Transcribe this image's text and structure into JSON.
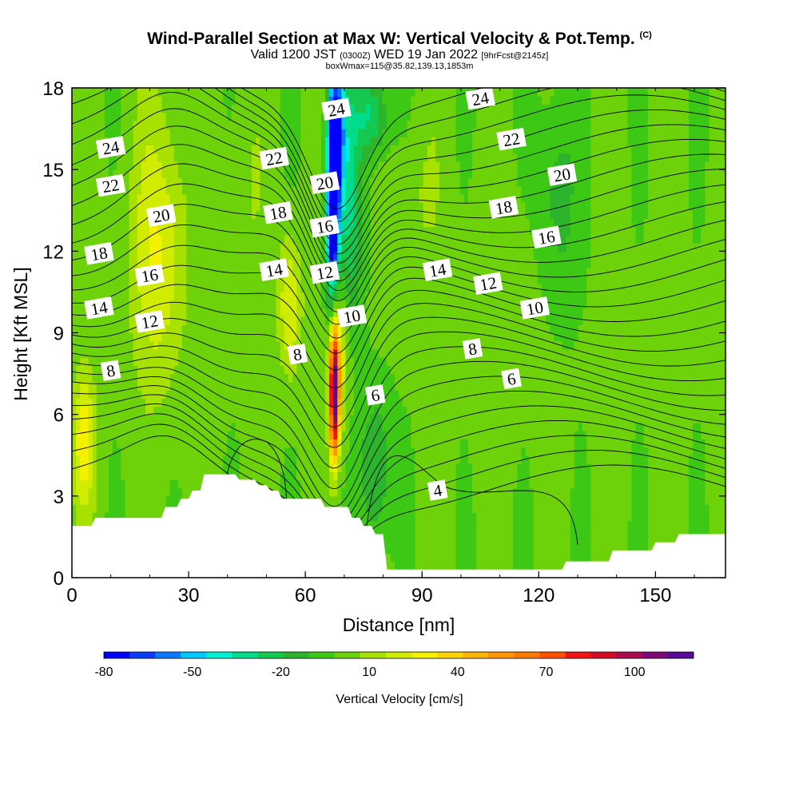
{
  "title": {
    "main": "Wind-Parallel Section at Max W: Vertical Velocity & Pot.Temp.",
    "copyright": "(C)",
    "sub_a": "Valid 1200 JST",
    "sub_b": "(0300Z)",
    "sub_c": "WED 19 Jan 2022",
    "sub_d": "[9hrFcst@2145z]",
    "sub2": "boxWmax=115@35.82,139.13,1853m"
  },
  "chart_data": {
    "type": "heatmap",
    "xlabel": "Distance [nm]",
    "ylabel": "Height [Kft MSL]",
    "xlim": [
      0,
      168
    ],
    "ylim": [
      0,
      18
    ],
    "x_ticks": [
      "0",
      "30",
      "60",
      "90",
      "120",
      "150"
    ],
    "x_tick_values": [
      0,
      30,
      60,
      90,
      120,
      150
    ],
    "y_ticks": [
      "0",
      "3",
      "6",
      "9",
      "12",
      "15",
      "18"
    ],
    "y_tick_values": [
      0,
      3,
      6,
      9,
      12,
      15,
      18
    ],
    "colorbar": {
      "label": "Vertical Velocity [cm/s]",
      "tick_labels": [
        "-80",
        "-50",
        "-20",
        "10",
        "40",
        "70",
        "100"
      ],
      "tick_values": [
        -80,
        -50,
        -20,
        10,
        40,
        70,
        100
      ],
      "range": [
        -80,
        120
      ],
      "colors": [
        "#0000ff",
        "#0a3cff",
        "#0a78ff",
        "#00c8ff",
        "#00f0d0",
        "#00dc8c",
        "#14c850",
        "#2db42d",
        "#3cc814",
        "#6ed20a",
        "#a8e000",
        "#d2ec00",
        "#f5f000",
        "#ffd200",
        "#ffb400",
        "#ff9600",
        "#ff7800",
        "#ff5000",
        "#f01414",
        "#d20a28",
        "#aa0a50",
        "#7d0a78",
        "#5a0a96"
      ]
    },
    "max_vertical_velocity": {
      "x": 67,
      "y": 6.6,
      "value": 115
    },
    "terrain_profile_kft": [
      [
        0,
        1.9
      ],
      [
        5,
        1.9
      ],
      [
        6,
        2.2
      ],
      [
        23,
        2.2
      ],
      [
        24,
        2.6
      ],
      [
        27,
        2.6
      ],
      [
        28,
        2.9
      ],
      [
        30,
        2.9
      ],
      [
        31,
        3.2
      ],
      [
        33,
        3.2
      ],
      [
        34,
        3.8
      ],
      [
        42,
        3.8
      ],
      [
        43,
        3.6
      ],
      [
        47,
        3.6
      ],
      [
        48,
        3.4
      ],
      [
        50,
        3.4
      ],
      [
        51,
        3.2
      ],
      [
        53,
        3.2
      ],
      [
        54,
        2.9
      ],
      [
        64,
        2.9
      ],
      [
        65,
        2.6
      ],
      [
        71,
        2.6
      ],
      [
        72,
        2.2
      ],
      [
        74,
        2.2
      ],
      [
        75,
        1.9
      ],
      [
        77,
        1.9
      ],
      [
        78,
        1.6
      ],
      [
        80,
        1.6
      ],
      [
        81,
        0.3
      ],
      [
        126,
        0.3
      ],
      [
        127,
        0.6
      ],
      [
        138,
        0.6
      ],
      [
        139,
        1.0
      ],
      [
        149,
        1.0
      ],
      [
        150,
        1.3
      ],
      [
        155,
        1.3
      ],
      [
        156,
        1.6
      ],
      [
        168,
        1.6
      ]
    ],
    "theta_contour_labels": [
      {
        "text": "24",
        "x": 10,
        "y": 15.8
      },
      {
        "text": "24",
        "x": 68,
        "y": 17.2
      },
      {
        "text": "24",
        "x": 105,
        "y": 17.6
      },
      {
        "text": "22",
        "x": 10,
        "y": 14.4
      },
      {
        "text": "22",
        "x": 52,
        "y": 15.4
      },
      {
        "text": "22",
        "x": 113,
        "y": 16.1
      },
      {
        "text": "20",
        "x": 23,
        "y": 13.3
      },
      {
        "text": "20",
        "x": 65,
        "y": 14.5
      },
      {
        "text": "20",
        "x": 126,
        "y": 14.8
      },
      {
        "text": "18",
        "x": 7,
        "y": 11.9
      },
      {
        "text": "18",
        "x": 53,
        "y": 13.4
      },
      {
        "text": "18",
        "x": 111,
        "y": 13.6
      },
      {
        "text": "16",
        "x": 20,
        "y": 11.1
      },
      {
        "text": "16",
        "x": 65,
        "y": 12.9
      },
      {
        "text": "16",
        "x": 122,
        "y": 12.5
      },
      {
        "text": "14",
        "x": 7,
        "y": 9.9
      },
      {
        "text": "14",
        "x": 52,
        "y": 11.3
      },
      {
        "text": "14",
        "x": 94,
        "y": 11.3
      },
      {
        "text": "12",
        "x": 20,
        "y": 9.4
      },
      {
        "text": "12",
        "x": 65,
        "y": 11.2
      },
      {
        "text": "12",
        "x": 107,
        "y": 10.8
      },
      {
        "text": "10",
        "x": 72,
        "y": 9.6
      },
      {
        "text": "10",
        "x": 119,
        "y": 9.9
      },
      {
        "text": "8",
        "x": 10,
        "y": 7.6
      },
      {
        "text": "8",
        "x": 58,
        "y": 8.2
      },
      {
        "text": "8",
        "x": 103,
        "y": 8.4
      },
      {
        "text": "6",
        "x": 78,
        "y": 6.7
      },
      {
        "text": "6",
        "x": 113,
        "y": 7.3
      },
      {
        "text": "4",
        "x": 94,
        "y": 3.2
      }
    ]
  }
}
